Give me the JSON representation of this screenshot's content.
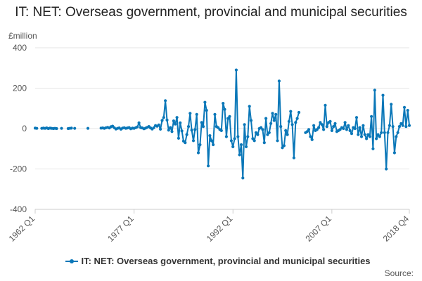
{
  "chart_data": {
    "type": "line",
    "title": "IT: NET: Overseas government, provincial and municipal securities",
    "unit": "£million",
    "x_tick_labels": [
      "1962 Q1",
      "1977 Q1",
      "1992 Q1",
      "2007 Q1",
      "2018 Q4"
    ],
    "y_tick_labels": [
      "400",
      "200",
      "0",
      "-200",
      "-400"
    ],
    "xlim": [
      1962.0,
      2018.75
    ],
    "ylim": [
      -400,
      400
    ],
    "y_ticks": [
      400,
      200,
      0,
      -200,
      -400
    ],
    "grid": true,
    "legend_position": "bottom",
    "series": [
      {
        "name": "IT: NET: Overseas government, provincial and municipal securities",
        "color": "#0a77b8",
        "segments": [
          [
            [
              1962.0,
              2
            ],
            [
              1962.25,
              1
            ]
          ],
          [
            [
              1963.0,
              1
            ],
            [
              1963.25,
              2
            ]
          ],
          [
            [
              1963.5,
              1
            ],
            [
              1963.75,
              3
            ],
            [
              1964.0,
              0
            ],
            [
              1964.25,
              2
            ],
            [
              1964.5,
              1
            ],
            [
              1964.75,
              0
            ]
          ],
          [
            [
              1965.0,
              1
            ],
            [
              1965.25,
              0
            ]
          ],
          [
            [
              1966.0,
              1
            ]
          ],
          [
            [
              1967.0,
              0
            ],
            [
              1967.25,
              1
            ],
            [
              1967.5,
              2
            ]
          ],
          [
            [
              1968.0,
              1
            ]
          ],
          [
            [
              1970.0,
              1
            ]
          ],
          [
            [
              1972.0,
              2
            ],
            [
              1972.25,
              3
            ],
            [
              1972.5,
              1
            ],
            [
              1972.75,
              4
            ],
            [
              1973.0,
              6
            ],
            [
              1973.25,
              3
            ],
            [
              1973.5,
              9
            ],
            [
              1973.75,
              12
            ],
            [
              1974.0,
              4
            ],
            [
              1974.25,
              -2
            ],
            [
              1974.5,
              1
            ],
            [
              1974.75,
              3
            ],
            [
              1975.0,
              -3
            ],
            [
              1975.25,
              2
            ],
            [
              1975.5,
              4
            ],
            [
              1975.75,
              1
            ],
            [
              1976.0,
              3
            ],
            [
              1976.25,
              5
            ],
            [
              1976.5,
              -1
            ],
            [
              1976.75,
              2
            ]
          ],
          [
            [
              1977.0,
              1
            ],
            [
              1977.25,
              4
            ],
            [
              1977.5,
              8
            ],
            [
              1977.75,
              28
            ],
            [
              1978.0,
              5
            ],
            [
              1978.25,
              3
            ],
            [
              1978.5,
              -1
            ],
            [
              1978.75,
              2
            ],
            [
              1979.0,
              6
            ],
            [
              1979.25,
              10
            ],
            [
              1979.5,
              3
            ],
            [
              1979.75,
              -2
            ],
            [
              1980.0,
              4
            ],
            [
              1980.25,
              15
            ],
            [
              1980.5,
              12
            ],
            [
              1980.75,
              18
            ],
            [
              1981.0,
              -3
            ],
            [
              1981.25,
              40
            ],
            [
              1981.5,
              55
            ],
            [
              1981.75,
              138
            ],
            [
              1982.0,
              42
            ],
            [
              1982.25,
              -8
            ],
            [
              1982.5,
              5
            ],
            [
              1982.75,
              -15
            ],
            [
              1983.0,
              38
            ],
            [
              1983.25,
              22
            ],
            [
              1983.5,
              55
            ],
            [
              1983.75,
              -48
            ],
            [
              1984.0,
              28
            ],
            [
              1984.25,
              -12
            ],
            [
              1984.5,
              -62
            ],
            [
              1984.75,
              -70
            ],
            [
              1985.0,
              -30
            ],
            [
              1985.25,
              10
            ],
            [
              1985.5,
              75
            ],
            [
              1985.75,
              -8
            ],
            [
              1986.0,
              -60
            ],
            [
              1986.25,
              -5
            ],
            [
              1986.5,
              70
            ],
            [
              1986.75,
              -120
            ],
            [
              1987.0,
              -80
            ],
            [
              1987.25,
              30
            ],
            [
              1987.5,
              10
            ],
            [
              1987.75,
              130
            ],
            [
              1988.0,
              90
            ],
            [
              1988.25,
              -185
            ],
            [
              1988.5,
              -35
            ],
            [
              1988.75,
              -60
            ],
            [
              1989.0,
              -80
            ],
            [
              1989.25,
              70
            ],
            [
              1989.5,
              10
            ],
            [
              1989.75,
              5
            ],
            [
              1990.0,
              -5
            ],
            [
              1990.25,
              -10
            ],
            [
              1990.5,
              125
            ],
            [
              1990.75,
              95
            ],
            [
              1991.0,
              -40
            ],
            [
              1991.25,
              50
            ],
            [
              1991.5,
              60
            ],
            [
              1991.75,
              -60
            ],
            [
              1992.0,
              -90
            ],
            [
              1992.25,
              -50
            ],
            [
              1992.5,
              290
            ],
            [
              1992.75,
              -40
            ],
            [
              1993.0,
              -130
            ],
            [
              1993.25,
              -80
            ],
            [
              1993.5,
              -245
            ],
            [
              1993.75,
              20
            ],
            [
              1994.0,
              -90
            ],
            [
              1994.25,
              -40
            ],
            [
              1994.5,
              110
            ],
            [
              1994.75,
              40
            ],
            [
              1995.0,
              -50
            ],
            [
              1995.25,
              -60
            ],
            [
              1995.5,
              -20
            ],
            [
              1995.75,
              -30
            ],
            [
              1996.0,
              0
            ],
            [
              1996.25,
              5
            ],
            [
              1996.5,
              -5
            ],
            [
              1996.75,
              -70
            ],
            [
              1997.0,
              50
            ],
            [
              1997.25,
              -30
            ],
            [
              1997.5,
              -20
            ],
            [
              1997.75,
              25
            ],
            [
              1998.0,
              75
            ],
            [
              1998.25,
              40
            ],
            [
              1998.5,
              70
            ],
            [
              1998.75,
              -60
            ],
            [
              1999.0,
              235
            ],
            [
              1999.25,
              10
            ],
            [
              1999.5,
              -95
            ],
            [
              1999.75,
              -85
            ],
            [
              2000.0,
              -10
            ],
            [
              2000.25,
              -30
            ],
            [
              2000.5,
              35
            ],
            [
              2000.75,
              85
            ],
            [
              2001.0,
              20
            ],
            [
              2001.25,
              -145
            ],
            [
              2001.5,
              30
            ],
            [
              2001.75,
              50
            ],
            [
              2002.0,
              80
            ]
          ],
          [
            [
              2003.0,
              -20
            ],
            [
              2003.25,
              -15
            ],
            [
              2003.5,
              -5
            ],
            [
              2003.75,
              -40
            ],
            [
              2004.0,
              -55
            ],
            [
              2004.25,
              15
            ],
            [
              2004.5,
              -10
            ],
            [
              2004.75,
              -5
            ],
            [
              2005.0,
              5
            ],
            [
              2005.25,
              30
            ],
            [
              2005.5,
              20
            ],
            [
              2005.75,
              -5
            ],
            [
              2006.0,
              115
            ],
            [
              2006.25,
              10
            ],
            [
              2006.5,
              30
            ],
            [
              2006.75,
              35
            ],
            [
              2007.0,
              -10
            ],
            [
              2007.25,
              10
            ],
            [
              2007.5,
              25
            ],
            [
              2007.75,
              -15
            ],
            [
              2008.0,
              -10
            ],
            [
              2008.25,
              -5
            ],
            [
              2008.5,
              5
            ],
            [
              2008.75,
              0
            ],
            [
              2009.0,
              30
            ],
            [
              2009.25,
              -5
            ],
            [
              2009.5,
              15
            ],
            [
              2009.75,
              -10
            ],
            [
              2010.0,
              -25
            ],
            [
              2010.25,
              5
            ],
            [
              2010.5,
              0
            ],
            [
              2010.75,
              55
            ],
            [
              2011.0,
              -30
            ],
            [
              2011.25,
              5
            ],
            [
              2011.5,
              -40
            ],
            [
              2011.75,
              15
            ],
            [
              2012.0,
              -30
            ],
            [
              2012.25,
              -50
            ],
            [
              2012.5,
              -30
            ],
            [
              2012.75,
              -40
            ],
            [
              2013.0,
              60
            ],
            [
              2013.25,
              -100
            ],
            [
              2013.5,
              190
            ],
            [
              2013.75,
              -50
            ],
            [
              2014.0,
              -30
            ],
            [
              2014.25,
              -40
            ],
            [
              2014.5,
              -20
            ],
            [
              2014.75,
              165
            ],
            [
              2015.0,
              -20
            ],
            [
              2015.25,
              -200
            ],
            [
              2015.5,
              -20
            ],
            [
              2015.75,
              15
            ],
            [
              2016.0,
              120
            ],
            [
              2016.25,
              10
            ],
            [
              2016.5,
              -120
            ],
            [
              2016.75,
              -40
            ],
            [
              2017.0,
              -20
            ],
            [
              2017.25,
              10
            ],
            [
              2017.5,
              25
            ],
            [
              2017.75,
              15
            ],
            [
              2018.0,
              105
            ],
            [
              2018.25,
              10
            ],
            [
              2018.5,
              90
            ],
            [
              2018.75,
              15
            ]
          ]
        ]
      }
    ]
  },
  "legend": {
    "label": "IT: NET: Overseas government, provincial and municipal securities"
  },
  "source": {
    "label": "Source:"
  }
}
